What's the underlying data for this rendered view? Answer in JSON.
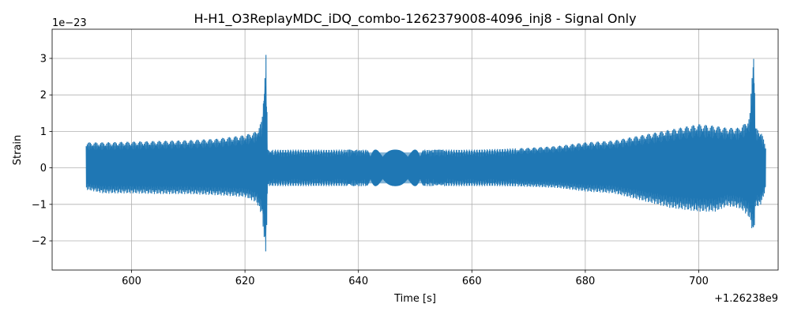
{
  "chart_data": {
    "type": "line",
    "title": "H-H1_O3ReplayMDC_iDQ_combo-1262379008-4096_inj8 - Signal Only",
    "xlabel": "Time [s]",
    "ylabel": "Strain",
    "x_offset_label": "+1.26238e9",
    "y_exponent_label": "1e−23",
    "xlim": [
      586,
      714
    ],
    "ylim": [
      -2.8,
      3.8
    ],
    "x_ticks": [
      600,
      620,
      640,
      660,
      680,
      700
    ],
    "y_ticks": [
      -2,
      -1,
      0,
      1,
      2,
      3
    ],
    "x_tick_labels": [
      "600",
      "620",
      "640",
      "660",
      "680",
      "700"
    ],
    "y_tick_labels": [
      "−2",
      "−1",
      "0",
      "1",
      "2",
      "3"
    ],
    "grid": true,
    "color": "#1f77b4",
    "envelope": {
      "x": [
        592,
        595,
        600,
        605,
        610,
        615,
        620,
        622,
        623,
        623.7,
        624,
        625,
        630,
        635,
        640,
        645,
        650,
        655,
        660,
        665,
        670,
        675,
        680,
        685,
        690,
        695,
        700,
        703,
        705,
        707,
        708,
        709,
        709.7,
        710,
        711,
        711.8
      ],
      "upper": [
        0.7,
        0.7,
        0.72,
        0.74,
        0.76,
        0.8,
        0.9,
        1.0,
        1.3,
        3.2,
        0.5,
        0.5,
        0.5,
        0.5,
        0.5,
        0.5,
        0.5,
        0.5,
        0.5,
        0.52,
        0.55,
        0.6,
        0.7,
        0.75,
        0.9,
        1.05,
        1.2,
        1.15,
        1.1,
        1.1,
        1.2,
        1.4,
        3.5,
        1.1,
        1.0,
        0.6
      ],
      "lower": [
        -0.6,
        -0.7,
        -0.7,
        -0.72,
        -0.72,
        -0.75,
        -0.8,
        -0.95,
        -1.3,
        -2.5,
        -0.5,
        -0.5,
        -0.5,
        -0.5,
        -0.5,
        -0.5,
        -0.5,
        -0.5,
        -0.5,
        -0.5,
        -0.52,
        -0.55,
        -0.65,
        -0.7,
        -0.9,
        -1.1,
        -1.2,
        -1.2,
        -1.05,
        -1.1,
        -1.2,
        -1.4,
        -1.9,
        -1.1,
        -1.0,
        -0.6
      ]
    },
    "series": [
      {
        "x_start": 592,
        "x_end": 711.8
      }
    ]
  }
}
